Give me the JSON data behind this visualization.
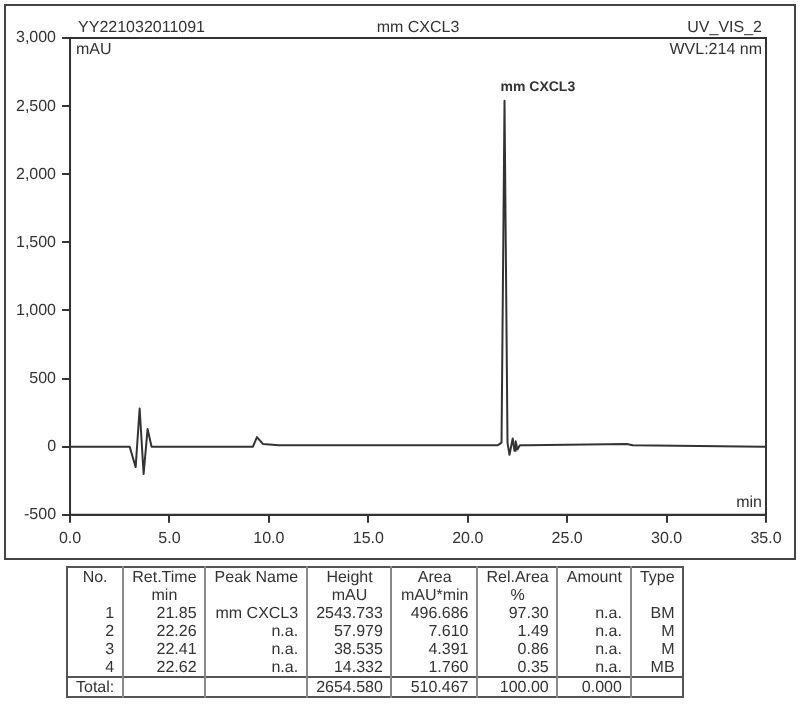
{
  "chart_data": {
    "type": "line",
    "title": "mm CXCL3",
    "subtitle": "UV_VIS_2",
    "xlabel": "min",
    "ylabel": "mAU",
    "annotations": [
      "YY221032011091",
      "WVL:214 nm",
      {
        "text": "mm CXCL3",
        "x": 21.85,
        "y": 2543.733
      },
      "No.\tRet.Time\tPeak Name\tHeight\tArea\tRel.Area\tAmount\tType",
      "\tmin\t\tmAU\tmAU*min\t%\t\t",
      "1\t21.85\tmm CXCL3\t2543.733\t496.686\t97.30\tn.a.\tBM",
      "2\t22.26\tn.a.\t57.979\t7.610\t1.49\tn.a.\tM",
      "3\t22.41\tn.a.\t38.535\t4.391\t0.86\tn.a.\tM",
      "4\t22.62\tn.a.\t14.332\t1.760\t0.35\tn.a.\tMB",
      "Total:\t\t\t2654.580\t510.467\t100.00\t0.000\t"
    ],
    "series": [
      {
        "color": "#333333",
        "x": [
          0,
          3.0,
          3.3,
          3.5,
          3.7,
          3.9,
          4.1,
          9.2,
          9.4,
          9.7,
          10.5,
          21.5,
          21.7,
          21.85,
          22.0,
          22.1,
          22.26,
          22.35,
          22.41,
          22.5,
          22.62,
          23,
          28,
          28.3,
          35
        ],
        "values": [
          0,
          0,
          -150,
          280,
          -200,
          130,
          0,
          0,
          70,
          20,
          10,
          10,
          30,
          2540,
          30,
          -60,
          60,
          -30,
          40,
          -20,
          10,
          10,
          20,
          10,
          0
        ]
      }
    ],
    "xlim": [
      0,
      35
    ],
    "xticks": [
      {
        "value": 0,
        "label": "0.0"
      },
      {
        "value": 5,
        "label": "5.0"
      },
      {
        "value": 10,
        "label": "10.0"
      },
      {
        "value": 15,
        "label": "15.0"
      },
      {
        "value": 20,
        "label": "20.0"
      },
      {
        "value": 25,
        "label": "25.0"
      },
      {
        "value": 30,
        "label": "30.0"
      },
      {
        "value": 35,
        "label": "35.0"
      }
    ],
    "ylim": [
      -500,
      3000
    ],
    "yticks": [
      -500,
      0,
      500,
      {
        "value": 1000,
        "label": "1,000"
      },
      {
        "value": 1500,
        "label": "1,500"
      },
      {
        "value": 2000,
        "label": "2,000"
      },
      {
        "value": 2500,
        "label": "2,500"
      },
      {
        "value": 3000,
        "label": "3,000"
      }
    ],
    "grid": false,
    "legend": false,
    "marker": "none",
    "line_style": "solid"
  }
}
